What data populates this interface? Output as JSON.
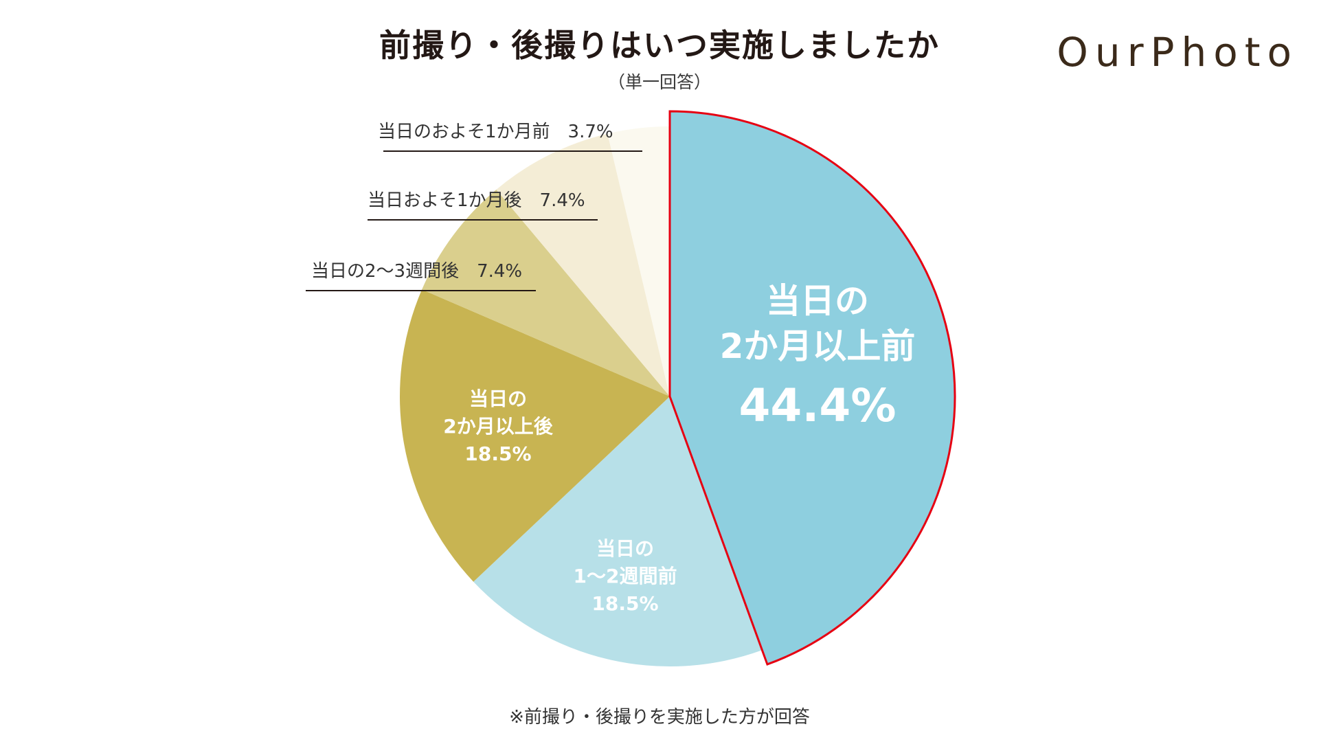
{
  "header": {
    "title": "前撮り・後撮りはいつ実施しましたか",
    "subtitle": "（単一回答）",
    "logo_text": "OurPhoto"
  },
  "footnote": "※前撮り・後撮りを実施した方が回答",
  "colors": {
    "highlight_outline": "#e60012",
    "title_text": "#231815"
  },
  "chart_data": {
    "type": "pie",
    "title": "前撮り・後撮りはいつ実施しましたか",
    "subtitle": "（単一回答）",
    "start": "12 o'clock, clockwise",
    "slices": [
      {
        "label_lines": [
          "当日の",
          "2か月以上前"
        ],
        "value": 44.4,
        "value_text": "44.4%",
        "color": "#8ecfdf",
        "highlight": true,
        "label_style": "inside-large"
      },
      {
        "label_lines": [
          "当日の",
          "1〜2週間前"
        ],
        "value": 18.5,
        "value_text": "18.5%",
        "color": "#b7e0e8",
        "highlight": false,
        "label_style": "inside"
      },
      {
        "label_lines": [
          "当日の",
          "2か月以上後"
        ],
        "value": 18.5,
        "value_text": "18.5%",
        "color": "#c8b452",
        "highlight": false,
        "label_style": "inside"
      },
      {
        "label_lines": [
          "当日の2〜3週間後"
        ],
        "value": 7.4,
        "value_text": "7.4%",
        "color": "#dacf8d",
        "highlight": false,
        "label_style": "callout",
        "callout_text": "当日の2〜3週間後　7.4%"
      },
      {
        "label_lines": [
          "当日およそ1か月後"
        ],
        "value": 7.4,
        "value_text": "7.4%",
        "color": "#f4edd6",
        "highlight": false,
        "label_style": "callout",
        "callout_text": "当日およそ1か月後　7.4%"
      },
      {
        "label_lines": [
          "当日のおよそ1か月前"
        ],
        "value": 3.7,
        "value_text": "3.7%",
        "color": "#fbf9ef",
        "highlight": false,
        "label_style": "callout",
        "callout_text": "当日のおよそ1か月前　3.7%"
      }
    ]
  }
}
